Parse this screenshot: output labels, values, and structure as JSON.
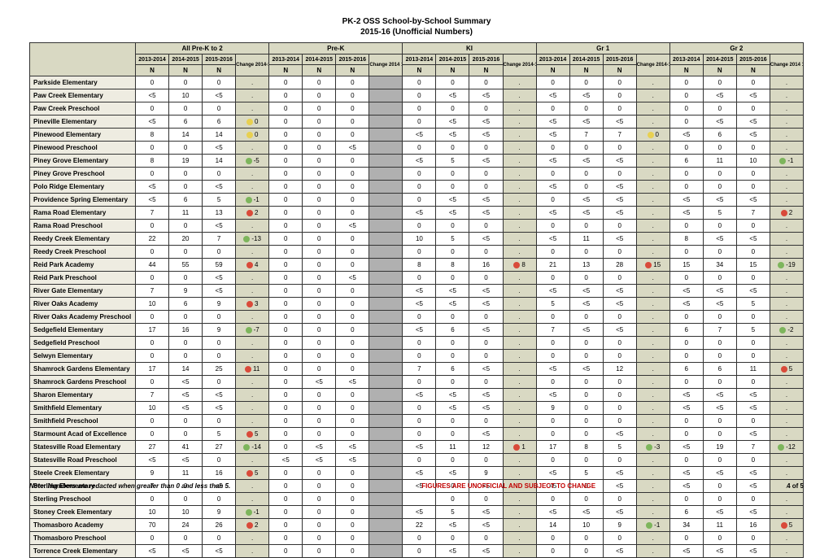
{
  "title_line1": "PK-2 OSS School-by-School Summary",
  "title_line2": "2015-16 (Unofficial Numbers)",
  "footer_note": "Note: Numbers are redacted when greater than 0 and less than 5.",
  "footer_warn": "FIGURES ARE UNOFFICIAL AND SUBJECT TO CHANGE",
  "footer_page": "4 of 5",
  "groups": [
    "All Pre-K to 2",
    "Pre-K",
    "KI",
    "Gr 1",
    "Gr 2"
  ],
  "years": [
    "2013-2014",
    "2014-2015",
    "2015-2016"
  ],
  "change_labels": [
    "Change 2014-15 to 2015-16",
    "Change 2014 15 to 2015-16",
    "Change 2014-15 to 2015-16",
    "Change 2014-15 to 2015-16",
    "Change 2014 15 to 2015-16"
  ],
  "n_label": "N",
  "schools": [
    "Parkside Elementary",
    "Paw Creek Elementary",
    "Paw Creek Preschool",
    "Pineville Elementary",
    "Pinewood Elementary",
    "Pinewood Preschool",
    "Piney Grove Elementary",
    "Piney Grove Preschool",
    "Polo Ridge Elementary",
    "Providence Spring Elementary",
    "Rama Road Elementary",
    "Rama Road Preschool",
    "Reedy Creek Elementary",
    "Reedy Creek Preschool",
    "Reid Park Academy",
    "Reid Park Preschool",
    "River Gate Elementary",
    "River Oaks Academy",
    "River Oaks Academy Preschool",
    "Sedgefield Elementary",
    "Sedgefield Preschool",
    "Selwyn Elementary",
    "Shamrock Gardens Elementary",
    "Shamrock Gardens Preschool",
    "Sharon Elementary",
    "Smithfield Elementary",
    "Smithfield Preschool",
    "Starmount Acad of Excellence",
    "Statesville Road Elementary",
    "Statesville Road Preschool",
    "Steele Creek Elementary",
    "Sterling Elementary",
    "Sterling Preschool",
    "Stoney Creek Elementary",
    "Thomasboro Academy",
    "Thomasboro Preschool",
    "Torrence Creek Elementary"
  ],
  "rows": [
    [
      [
        "0",
        "0",
        "0",
        "."
      ],
      [
        "0",
        "0",
        "0",
        ""
      ],
      [
        "0",
        "0",
        "0",
        "."
      ],
      [
        "0",
        "0",
        "0",
        "."
      ],
      [
        "0",
        "0",
        "0",
        "."
      ]
    ],
    [
      [
        "<5",
        "10",
        "<5",
        "."
      ],
      [
        "0",
        "0",
        "0",
        ""
      ],
      [
        "0",
        "<5",
        "<5",
        "."
      ],
      [
        "<5",
        "<5",
        "0",
        "."
      ],
      [
        "0",
        "<5",
        "<5",
        "."
      ]
    ],
    [
      [
        "0",
        "0",
        "0",
        "."
      ],
      [
        "0",
        "0",
        "0",
        ""
      ],
      [
        "0",
        "0",
        "0",
        "."
      ],
      [
        "0",
        "0",
        "0",
        "."
      ],
      [
        "0",
        "0",
        "0",
        "."
      ]
    ],
    [
      [
        "<5",
        "6",
        "6",
        "yellow:0"
      ],
      [
        "0",
        "0",
        "0",
        ""
      ],
      [
        "0",
        "<5",
        "<5",
        "."
      ],
      [
        "<5",
        "<5",
        "<5",
        "."
      ],
      [
        "0",
        "<5",
        "<5",
        "."
      ]
    ],
    [
      [
        "8",
        "14",
        "14",
        "yellow:0"
      ],
      [
        "0",
        "0",
        "0",
        ""
      ],
      [
        "<5",
        "<5",
        "<5",
        "."
      ],
      [
        "<5",
        "7",
        "7",
        "yellow:0"
      ],
      [
        "<5",
        "6",
        "<5",
        "."
      ]
    ],
    [
      [
        "0",
        "0",
        "<5",
        "."
      ],
      [
        "0",
        "0",
        "<5",
        ""
      ],
      [
        "0",
        "0",
        "0",
        "."
      ],
      [
        "0",
        "0",
        "0",
        "."
      ],
      [
        "0",
        "0",
        "0",
        "."
      ]
    ],
    [
      [
        "8",
        "19",
        "14",
        "green:-5"
      ],
      [
        "0",
        "0",
        "0",
        ""
      ],
      [
        "<5",
        "5",
        "<5",
        "."
      ],
      [
        "<5",
        "<5",
        "<5",
        "."
      ],
      [
        "6",
        "11",
        "10",
        "green:-1"
      ]
    ],
    [
      [
        "0",
        "0",
        "0",
        "."
      ],
      [
        "0",
        "0",
        "0",
        ""
      ],
      [
        "0",
        "0",
        "0",
        "."
      ],
      [
        "0",
        "0",
        "0",
        "."
      ],
      [
        "0",
        "0",
        "0",
        "."
      ]
    ],
    [
      [
        "<5",
        "0",
        "<5",
        "."
      ],
      [
        "0",
        "0",
        "0",
        ""
      ],
      [
        "0",
        "0",
        "0",
        "."
      ],
      [
        "<5",
        "0",
        "<5",
        "."
      ],
      [
        "0",
        "0",
        "0",
        "."
      ]
    ],
    [
      [
        "<5",
        "6",
        "5",
        "green:-1"
      ],
      [
        "0",
        "0",
        "0",
        ""
      ],
      [
        "0",
        "<5",
        "<5",
        "."
      ],
      [
        "0",
        "<5",
        "<5",
        "."
      ],
      [
        "<5",
        "<5",
        "<5",
        "."
      ]
    ],
    [
      [
        "7",
        "11",
        "13",
        "red:2"
      ],
      [
        "0",
        "0",
        "0",
        ""
      ],
      [
        "<5",
        "<5",
        "<5",
        "."
      ],
      [
        "<5",
        "<5",
        "<5",
        "."
      ],
      [
        "<5",
        "5",
        "7",
        "red:2"
      ]
    ],
    [
      [
        "0",
        "0",
        "<5",
        "."
      ],
      [
        "0",
        "0",
        "<5",
        ""
      ],
      [
        "0",
        "0",
        "0",
        "."
      ],
      [
        "0",
        "0",
        "0",
        "."
      ],
      [
        "0",
        "0",
        "0",
        "."
      ]
    ],
    [
      [
        "22",
        "20",
        "7",
        "green:-13"
      ],
      [
        "0",
        "0",
        "0",
        ""
      ],
      [
        "10",
        "5",
        "<5",
        "."
      ],
      [
        "<5",
        "11",
        "<5",
        "."
      ],
      [
        "8",
        "<5",
        "<5",
        "."
      ]
    ],
    [
      [
        "0",
        "0",
        "0",
        "."
      ],
      [
        "0",
        "0",
        "0",
        ""
      ],
      [
        "0",
        "0",
        "0",
        "."
      ],
      [
        "0",
        "0",
        "0",
        "."
      ],
      [
        "0",
        "0",
        "0",
        "."
      ]
    ],
    [
      [
        "44",
        "55",
        "59",
        "red:4"
      ],
      [
        "0",
        "0",
        "0",
        ""
      ],
      [
        "8",
        "8",
        "16",
        "red:8"
      ],
      [
        "21",
        "13",
        "28",
        "red:15"
      ],
      [
        "15",
        "34",
        "15",
        "green:-19"
      ]
    ],
    [
      [
        "0",
        "0",
        "<5",
        "."
      ],
      [
        "0",
        "0",
        "<5",
        ""
      ],
      [
        "0",
        "0",
        "0",
        "."
      ],
      [
        "0",
        "0",
        "0",
        "."
      ],
      [
        "0",
        "0",
        "0",
        "."
      ]
    ],
    [
      [
        "7",
        "9",
        "<5",
        "."
      ],
      [
        "0",
        "0",
        "0",
        ""
      ],
      [
        "<5",
        "<5",
        "<5",
        "."
      ],
      [
        "<5",
        "<5",
        "<5",
        "."
      ],
      [
        "<5",
        "<5",
        "<5",
        "."
      ]
    ],
    [
      [
        "10",
        "6",
        "9",
        "red:3"
      ],
      [
        "0",
        "0",
        "0",
        ""
      ],
      [
        "<5",
        "<5",
        "<5",
        "."
      ],
      [
        "5",
        "<5",
        "<5",
        "."
      ],
      [
        "<5",
        "<5",
        "5",
        "."
      ]
    ],
    [
      [
        "0",
        "0",
        "0",
        "."
      ],
      [
        "0",
        "0",
        "0",
        ""
      ],
      [
        "0",
        "0",
        "0",
        "."
      ],
      [
        "0",
        "0",
        "0",
        "."
      ],
      [
        "0",
        "0",
        "0",
        "."
      ]
    ],
    [
      [
        "17",
        "16",
        "9",
        "green:-7"
      ],
      [
        "0",
        "0",
        "0",
        ""
      ],
      [
        "<5",
        "6",
        "<5",
        "."
      ],
      [
        "7",
        "<5",
        "<5",
        "."
      ],
      [
        "6",
        "7",
        "5",
        "green:-2"
      ]
    ],
    [
      [
        "0",
        "0",
        "0",
        "."
      ],
      [
        "0",
        "0",
        "0",
        ""
      ],
      [
        "0",
        "0",
        "0",
        "."
      ],
      [
        "0",
        "0",
        "0",
        "."
      ],
      [
        "0",
        "0",
        "0",
        "."
      ]
    ],
    [
      [
        "0",
        "0",
        "0",
        "."
      ],
      [
        "0",
        "0",
        "0",
        ""
      ],
      [
        "0",
        "0",
        "0",
        "."
      ],
      [
        "0",
        "0",
        "0",
        "."
      ],
      [
        "0",
        "0",
        "0",
        "."
      ]
    ],
    [
      [
        "17",
        "14",
        "25",
        "red:11"
      ],
      [
        "0",
        "0",
        "0",
        ""
      ],
      [
        "7",
        "6",
        "<5",
        "."
      ],
      [
        "<5",
        "<5",
        "12",
        "."
      ],
      [
        "6",
        "6",
        "11",
        "red:5"
      ]
    ],
    [
      [
        "0",
        "<5",
        "0",
        "."
      ],
      [
        "0",
        "<5",
        "<5",
        ""
      ],
      [
        "0",
        "0",
        "0",
        "."
      ],
      [
        "0",
        "0",
        "0",
        "."
      ],
      [
        "0",
        "0",
        "0",
        "."
      ]
    ],
    [
      [
        "7",
        "<5",
        "<5",
        "."
      ],
      [
        "0",
        "0",
        "0",
        ""
      ],
      [
        "<5",
        "<5",
        "<5",
        "."
      ],
      [
        "<5",
        "0",
        "0",
        "."
      ],
      [
        "<5",
        "<5",
        "<5",
        "."
      ]
    ],
    [
      [
        "10",
        "<5",
        "<5",
        "."
      ],
      [
        "0",
        "0",
        "0",
        ""
      ],
      [
        "0",
        "<5",
        "<5",
        "."
      ],
      [
        "9",
        "0",
        "0",
        "."
      ],
      [
        "<5",
        "<5",
        "<5",
        "."
      ]
    ],
    [
      [
        "0",
        "0",
        "0",
        "."
      ],
      [
        "0",
        "0",
        "0",
        ""
      ],
      [
        "0",
        "0",
        "0",
        "."
      ],
      [
        "0",
        "0",
        "0",
        "."
      ],
      [
        "0",
        "0",
        "0",
        "."
      ]
    ],
    [
      [
        "0",
        "0",
        "5",
        "red:5"
      ],
      [
        "0",
        "0",
        "0",
        ""
      ],
      [
        "0",
        "0",
        "<5",
        "."
      ],
      [
        "0",
        "0",
        "<5",
        "."
      ],
      [
        "0",
        "0",
        "<5",
        "."
      ]
    ],
    [
      [
        "27",
        "41",
        "27",
        "green:-14"
      ],
      [
        "0",
        "<5",
        "<5",
        ""
      ],
      [
        "<5",
        "11",
        "12",
        "red:1"
      ],
      [
        "17",
        "8",
        "5",
        "green:-3"
      ],
      [
        "<5",
        "19",
        "7",
        "green:-12"
      ]
    ],
    [
      [
        "<5",
        "<5",
        "0",
        "."
      ],
      [
        "<5",
        "<5",
        "<5",
        ""
      ],
      [
        "0",
        "0",
        "0",
        "."
      ],
      [
        "0",
        "0",
        "0",
        "."
      ],
      [
        "0",
        "0",
        "0",
        "."
      ]
    ],
    [
      [
        "9",
        "11",
        "16",
        "red:5"
      ],
      [
        "0",
        "0",
        "0",
        ""
      ],
      [
        "<5",
        "<5",
        "9",
        "."
      ],
      [
        "<5",
        "5",
        "<5",
        "."
      ],
      [
        "<5",
        "<5",
        "<5",
        "."
      ]
    ],
    [
      [
        "7",
        "0",
        "<5",
        "."
      ],
      [
        "0",
        "0",
        "0",
        ""
      ],
      [
        "<5",
        "0",
        "<5",
        "."
      ],
      [
        "<5",
        "0",
        "<5",
        "."
      ],
      [
        "<5",
        "0",
        "<5",
        "."
      ]
    ],
    [
      [
        "0",
        "0",
        "0",
        "."
      ],
      [
        "0",
        "0",
        "0",
        ""
      ],
      [
        "",
        "0",
        "0",
        "."
      ],
      [
        "0",
        "0",
        "0",
        "."
      ],
      [
        "0",
        "0",
        "0",
        "."
      ]
    ],
    [
      [
        "10",
        "10",
        "9",
        "green:-1"
      ],
      [
        "0",
        "0",
        "0",
        ""
      ],
      [
        "<5",
        "5",
        "<5",
        "."
      ],
      [
        "<5",
        "<5",
        "<5",
        "."
      ],
      [
        "6",
        "<5",
        "<5",
        "."
      ]
    ],
    [
      [
        "70",
        "24",
        "26",
        "red:2"
      ],
      [
        "0",
        "0",
        "0",
        ""
      ],
      [
        "22",
        "<5",
        "<5",
        "."
      ],
      [
        "14",
        "10",
        "9",
        "green:-1"
      ],
      [
        "34",
        "11",
        "16",
        "red:5"
      ]
    ],
    [
      [
        "0",
        "0",
        "0",
        "."
      ],
      [
        "0",
        "0",
        "0",
        ""
      ],
      [
        "0",
        "0",
        "0",
        "."
      ],
      [
        "0",
        "0",
        "0",
        "."
      ],
      [
        "0",
        "0",
        "0",
        "."
      ]
    ],
    [
      [
        "<5",
        "<5",
        "<5",
        "."
      ],
      [
        "0",
        "0",
        "0",
        ""
      ],
      [
        "0",
        "<5",
        "<5",
        "."
      ],
      [
        "0",
        "0",
        "<5",
        "."
      ],
      [
        "<5",
        "<5",
        "<5",
        "."
      ]
    ]
  ]
}
